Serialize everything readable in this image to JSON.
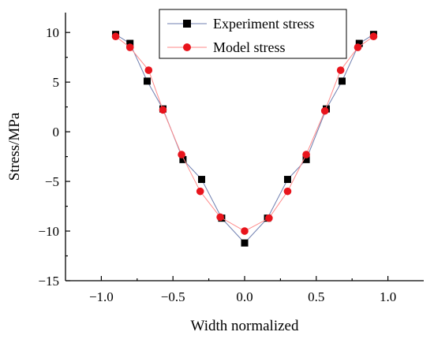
{
  "chart_data": {
    "type": "line",
    "title": "",
    "xlabel": "Width normalized",
    "ylabel": "Stress/MPa",
    "xlim": [
      -1.25,
      1.25
    ],
    "ylim": [
      -15,
      12
    ],
    "x_ticks": [
      -1.0,
      -0.5,
      0.0,
      0.5,
      1.0
    ],
    "x_tick_labels": [
      "−1.0",
      "−0.5",
      "0.0",
      "0.5",
      "1.0"
    ],
    "y_ticks": [
      10,
      5,
      0,
      -5,
      -10,
      -15
    ],
    "y_tick_labels": [
      "10",
      "5",
      "0",
      "−5",
      "−10",
      "−15"
    ],
    "grid": false,
    "legend_position": "top-center",
    "series": [
      {
        "name": "Experiment stress",
        "color": "#000000",
        "line_color": "#6f7fb0",
        "marker": "square",
        "points": [
          [
            -0.9,
            9.8
          ],
          [
            -0.8,
            8.9
          ],
          [
            -0.68,
            5.1
          ],
          [
            -0.57,
            2.3
          ],
          [
            -0.43,
            -2.8
          ],
          [
            -0.3,
            -4.8
          ],
          [
            -0.16,
            -8.7
          ],
          [
            0.0,
            -11.2
          ],
          [
            0.16,
            -8.7
          ],
          [
            0.3,
            -4.8
          ],
          [
            0.43,
            -2.8
          ],
          [
            0.57,
            2.3
          ],
          [
            0.68,
            5.1
          ],
          [
            0.8,
            8.9
          ],
          [
            0.9,
            9.8
          ]
        ]
      },
      {
        "name": "Model stress",
        "color": "#e8141c",
        "line_color": "#ff8a8a",
        "marker": "circle",
        "points": [
          [
            -0.9,
            9.6
          ],
          [
            -0.8,
            8.5
          ],
          [
            -0.67,
            6.2
          ],
          [
            -0.57,
            2.2
          ],
          [
            -0.44,
            -2.3
          ],
          [
            -0.31,
            -6.0
          ],
          [
            -0.17,
            -8.6
          ],
          [
            0.0,
            -10.0
          ],
          [
            0.17,
            -8.7
          ],
          [
            0.3,
            -6.0
          ],
          [
            0.43,
            -2.3
          ],
          [
            0.56,
            2.1
          ],
          [
            0.67,
            6.2
          ],
          [
            0.79,
            8.5
          ],
          [
            0.9,
            9.6
          ]
        ]
      }
    ]
  }
}
